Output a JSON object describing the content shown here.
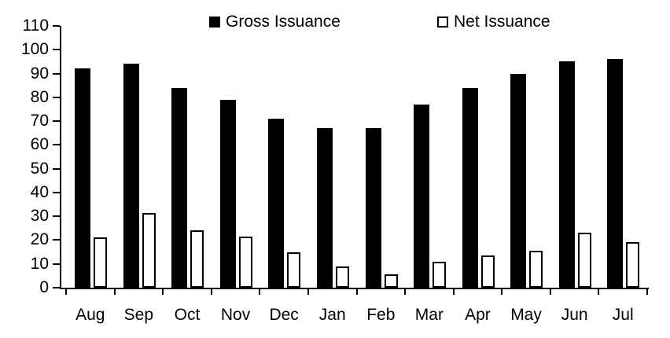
{
  "chart_data": {
    "type": "bar",
    "title": "",
    "xlabel": "",
    "ylabel": "",
    "categories": [
      "Aug",
      "Sep",
      "Oct",
      "Nov",
      "Dec",
      "Jan",
      "Feb",
      "Mar",
      "Apr",
      "May",
      "Jun",
      "Jul"
    ],
    "series": [
      {
        "name": "Gross Issuance",
        "fill": "#000000",
        "outline": "#000000",
        "values": [
          92,
          94,
          84,
          79,
          71,
          67,
          67,
          77,
          84,
          90,
          95,
          96
        ]
      },
      {
        "name": "Net Issuance",
        "fill": "#ffffff",
        "outline": "#000000",
        "values": [
          21,
          31.5,
          24,
          21.5,
          15,
          9,
          5.5,
          11,
          13.5,
          15.5,
          23,
          19
        ]
      }
    ],
    "ylim": [
      0,
      110
    ],
    "y_ticks": [
      0,
      10,
      20,
      30,
      40,
      50,
      60,
      70,
      80,
      90,
      100,
      110
    ],
    "grid": false,
    "legend_position": "top"
  },
  "colors": {
    "background": "#ffffff",
    "axis": "#000000",
    "text": "#000000"
  }
}
